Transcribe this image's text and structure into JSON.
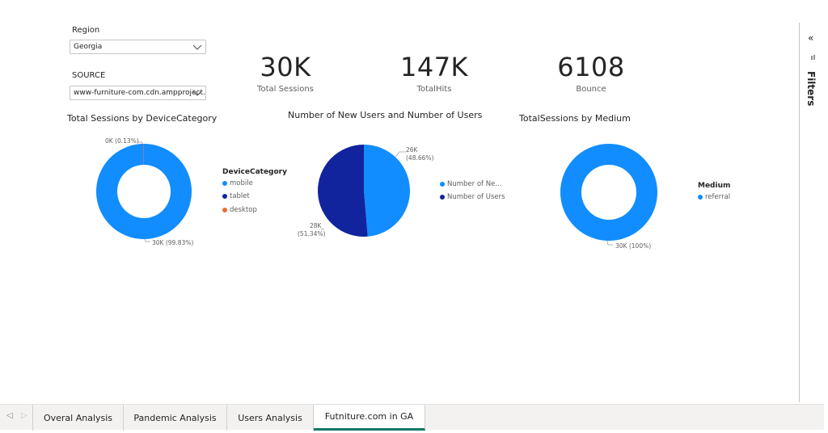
{
  "slicers": {
    "region": {
      "label": "Region",
      "value": "Georgia"
    },
    "source": {
      "label": "SOURCE",
      "value": "www-furniture-com.cdn.ampproject...."
    }
  },
  "cards": [
    {
      "value": "30K",
      "label": "Total Sessions"
    },
    {
      "value": "147K",
      "label": "TotalHits"
    },
    {
      "value": "6108",
      "label": "Bounce"
    }
  ],
  "device_chart": {
    "title": "Total Sessions by DeviceCategory",
    "legend_title": "DeviceCategory",
    "legend": [
      "mobile",
      "tablet",
      "desktop"
    ],
    "label_small": "0K (0.13%)",
    "label_main": "30K (99.83%)"
  },
  "users_chart": {
    "title": "Number of New Users and Number of Users",
    "legend": [
      "Number of Ne...",
      "Number of Users"
    ],
    "label_new_value": "26K",
    "label_new_pct": "(48.66%)",
    "label_users_value": "28K",
    "label_users_pct": "(51.34%)"
  },
  "medium_chart": {
    "title": "TotalSessions by Medium",
    "legend_title": "Medium",
    "legend": [
      "referral"
    ],
    "label_main": "30K (100%)"
  },
  "filters": {
    "label": "Filters",
    "collapse_glyph": "«"
  },
  "tabs": [
    {
      "label": "Overal Analysis"
    },
    {
      "label": "Pandemic Analysis"
    },
    {
      "label": "Users Analysis"
    },
    {
      "label": "Futniture.com in GA"
    }
  ],
  "colors": {
    "light_blue": "#118DFF",
    "dark_blue": "#12239E",
    "orange": "#E66C37",
    "active_tab": "#117865"
  },
  "chart_data": [
    {
      "type": "pie",
      "title": "Total Sessions by DeviceCategory",
      "variant": "donut",
      "slices": [
        {
          "name": "mobile",
          "value": 99.83,
          "label": "30K (99.83%)"
        },
        {
          "name": "tablet",
          "value": 0.04
        },
        {
          "name": "desktop",
          "value": 0.13,
          "label": "0K (0.13%)"
        }
      ]
    },
    {
      "type": "pie",
      "title": "Number of New Users and Number of Users",
      "slices": [
        {
          "name": "Number of New Users",
          "value": 48.66,
          "label": "26K (48.66%)"
        },
        {
          "name": "Number of Users",
          "value": 51.34,
          "label": "28K (51.34%)"
        }
      ]
    },
    {
      "type": "pie",
      "title": "TotalSessions by Medium",
      "variant": "donut",
      "slices": [
        {
          "name": "referral",
          "value": 100,
          "label": "30K (100%)"
        }
      ]
    }
  ]
}
